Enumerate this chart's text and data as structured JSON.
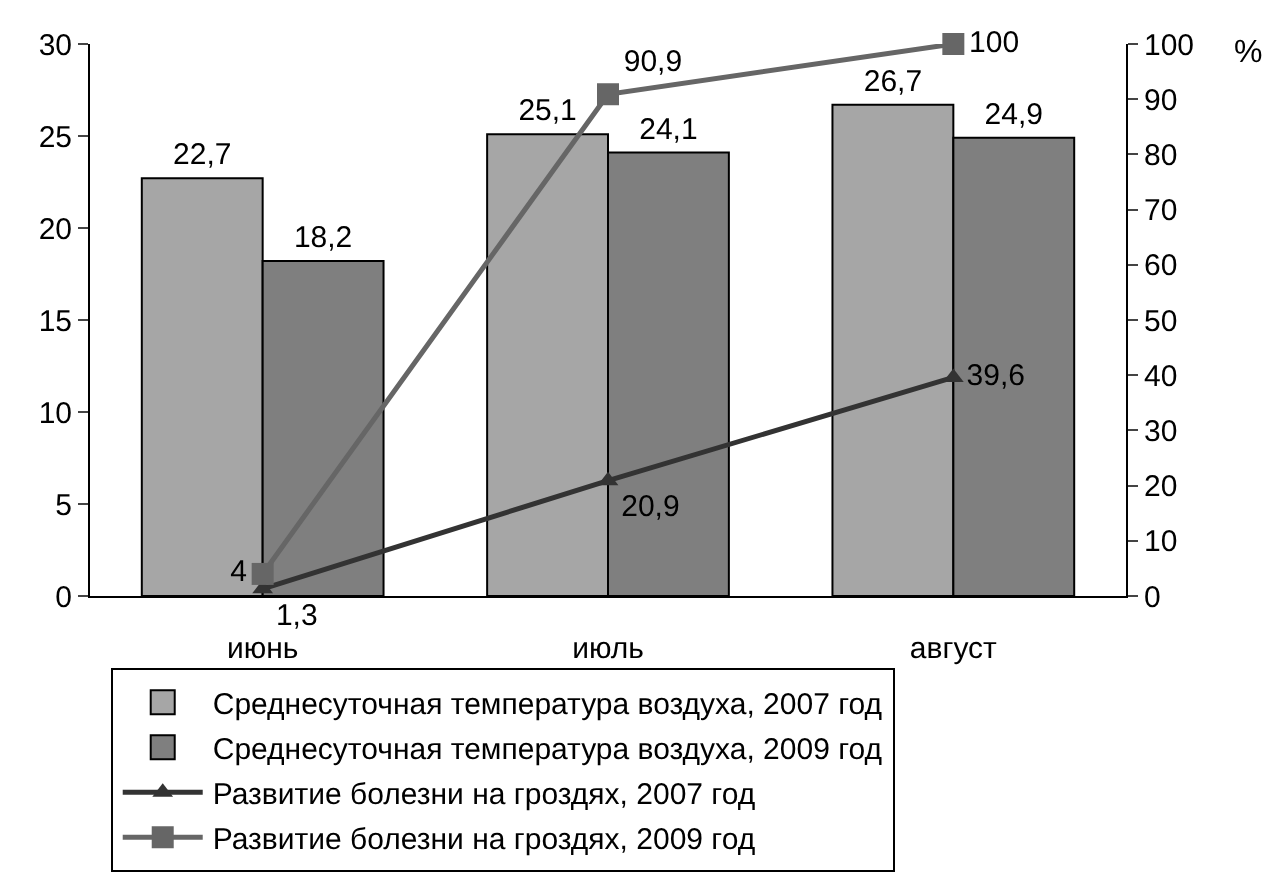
{
  "chart_data": {
    "type": "bar",
    "categories": [
      "июнь",
      "июль",
      "август"
    ],
    "y2label": "%",
    "ylim": [
      0,
      30
    ],
    "yticks": [
      0,
      5,
      10,
      15,
      20,
      25,
      30
    ],
    "y2lim": [
      0,
      100
    ],
    "y2ticks": [
      0,
      10,
      20,
      30,
      40,
      50,
      60,
      70,
      80,
      90,
      100
    ],
    "grid": false,
    "legend": "bottom",
    "series": [
      {
        "name": "Среднесуточная температура воздуха, 2007 год",
        "color": "#a6a6a6",
        "values": [
          22.7,
          25.1,
          26.7
        ],
        "value_labels": [
          "22,7",
          "25,1",
          "26,7"
        ]
      },
      {
        "name": "Среднесуточная температура воздуха, 2009 год",
        "color": "#7f7f7f",
        "values": [
          18.2,
          24.1,
          24.9
        ],
        "value_labels": [
          "18,2",
          "24,1",
          "24,9"
        ]
      },
      {
        "name": "Развитие болезни на гроздях, 2007 год",
        "type": "line",
        "axis": "y2",
        "marker": "triangle",
        "color": "#333333",
        "values": [
          1.3,
          20.9,
          39.6
        ],
        "value_labels": [
          "1,3",
          "20,9",
          "39,6"
        ]
      },
      {
        "name": "Развитие болезни на гроздях, 2009 год",
        "type": "line",
        "axis": "y2",
        "marker": "square",
        "color": "#666666",
        "values": [
          4,
          90.9,
          100
        ],
        "value_labels": [
          "4",
          "90,9",
          "100"
        ]
      }
    ]
  }
}
